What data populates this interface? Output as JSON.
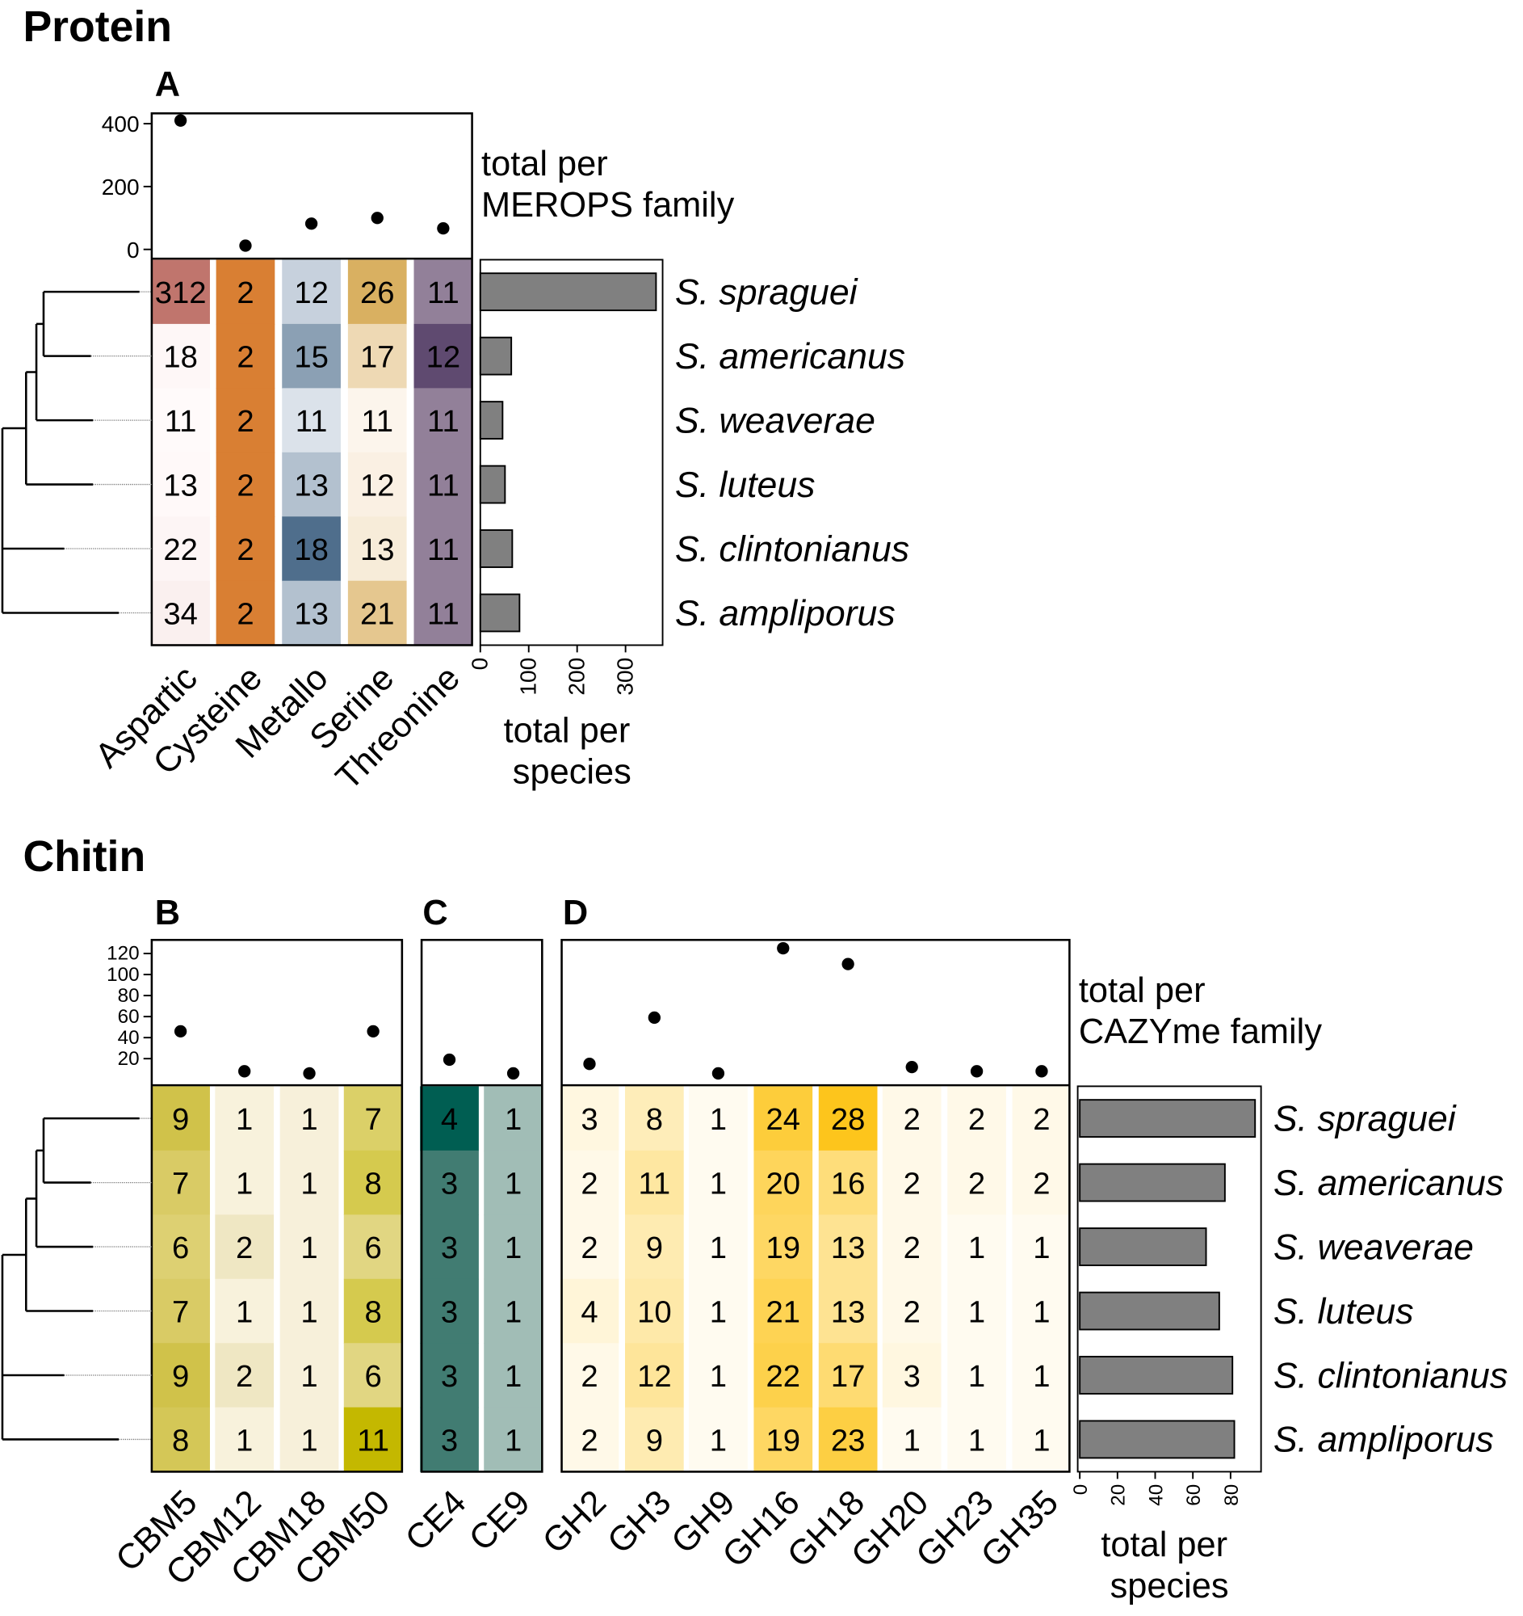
{
  "species": [
    "S. spraguei",
    "S. americanus",
    "S. weaverae",
    "S. luteus",
    "S. clintonianus",
    "S. ampliporus"
  ],
  "chart_data": [
    {
      "type": "heatmap",
      "section_title": "Protein",
      "panel": "A",
      "top_label": [
        "total per",
        "MEROPS family"
      ],
      "side_label": [
        "total per",
        "species"
      ],
      "top_axis_ticks": [
        0,
        200,
        400
      ],
      "side_axis_ticks": [
        0,
        100,
        200,
        300
      ],
      "columns": [
        {
          "name": "Aspartic",
          "values": [
            312,
            18,
            11,
            13,
            22,
            34
          ],
          "color_low": "#fffafa",
          "color_high": "#c0756d"
        },
        {
          "name": "Cysteine",
          "values": [
            2,
            2,
            2,
            2,
            2,
            2
          ],
          "color_low": "#d97f33",
          "color_high": "#d97f33"
        },
        {
          "name": "Metallo",
          "values": [
            12,
            15,
            11,
            13,
            18,
            13
          ],
          "color_low": "#dbe2ea",
          "color_high": "#4f6e8c"
        },
        {
          "name": "Serine",
          "values": [
            26,
            17,
            11,
            12,
            13,
            21
          ],
          "color_low": "#fcf5ec",
          "color_high": "#d9b061"
        },
        {
          "name": "Threonine",
          "values": [
            11,
            12,
            11,
            11,
            11,
            11
          ],
          "color_low": "#928099",
          "color_high": "#5f4a70"
        }
      ],
      "column_totals": [
        410,
        12,
        82,
        100,
        67
      ],
      "species_totals": [
        363,
        64,
        46,
        51,
        66,
        81
      ]
    },
    {
      "type": "heatmap",
      "section_title": "Chitin",
      "panels": [
        {
          "panel": "B",
          "columns": [
            {
              "name": "CBM5",
              "values": [
                9,
                7,
                6,
                7,
                9,
                8
              ],
              "color_low": "#ddd072",
              "color_high": "#d0c24a"
            },
            {
              "name": "CBM12",
              "values": [
                1,
                1,
                2,
                1,
                2,
                1
              ],
              "color_low": "#f8f2dc",
              "color_high": "#efe7c3"
            },
            {
              "name": "CBM18",
              "values": [
                1,
                1,
                1,
                1,
                1,
                1
              ],
              "color_low": "#f7f0da",
              "color_high": "#f7f0da"
            },
            {
              "name": "CBM50",
              "values": [
                7,
                8,
                6,
                8,
                6,
                11
              ],
              "color_low": "#e1d682",
              "color_high": "#c4b800"
            }
          ]
        },
        {
          "panel": "C",
          "columns": [
            {
              "name": "CE4",
              "values": [
                4,
                3,
                3,
                3,
                3,
                3
              ],
              "color_low": "#417c72",
              "color_high": "#005e52"
            },
            {
              "name": "CE9",
              "values": [
                1,
                1,
                1,
                1,
                1,
                1
              ],
              "color_low": "#a1bdb6",
              "color_high": "#a1bdb6"
            }
          ]
        },
        {
          "panel": "D",
          "shared_range": [
            1,
            28
          ],
          "color_low": "#fffbf0",
          "color_high": "#fdc51c",
          "columns": [
            {
              "name": "GH2",
              "values": [
                3,
                2,
                2,
                4,
                2,
                2
              ]
            },
            {
              "name": "GH3",
              "values": [
                8,
                11,
                9,
                10,
                12,
                9
              ]
            },
            {
              "name": "GH9",
              "values": [
                1,
                1,
                1,
                1,
                1,
                1
              ]
            },
            {
              "name": "GH16",
              "values": [
                24,
                20,
                19,
                21,
                22,
                19
              ]
            },
            {
              "name": "GH18",
              "values": [
                28,
                16,
                13,
                13,
                17,
                23
              ]
            },
            {
              "name": "GH20",
              "values": [
                2,
                2,
                2,
                2,
                3,
                1
              ]
            },
            {
              "name": "GH23",
              "values": [
                2,
                2,
                1,
                1,
                1,
                1
              ]
            },
            {
              "name": "GH35",
              "values": [
                2,
                2,
                1,
                1,
                1,
                1
              ]
            }
          ]
        }
      ],
      "top_label": [
        "total per",
        "CAZYme family"
      ],
      "side_label": [
        "total per",
        "species"
      ],
      "top_axis_ticks": [
        20,
        40,
        60,
        80,
        100,
        120
      ],
      "side_axis_ticks": [
        0,
        20,
        40,
        60,
        80
      ],
      "species_totals": [
        93,
        77,
        67,
        74,
        81,
        82
      ]
    }
  ]
}
